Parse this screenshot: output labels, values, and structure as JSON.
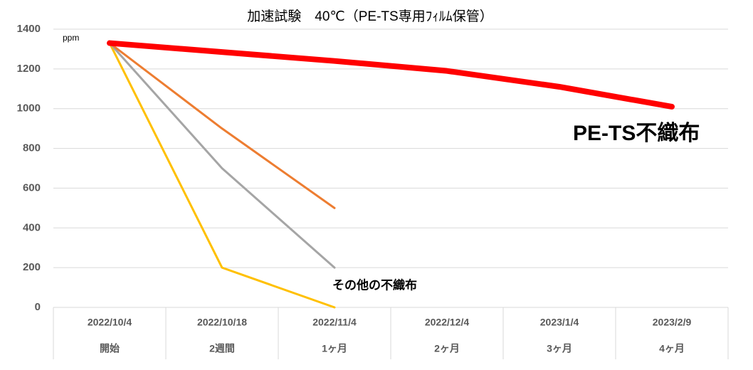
{
  "chart_data": {
    "type": "line",
    "title": "加速試験　40℃（PE-TS専用ﾌｨﾙﾑ保管）",
    "y_label": "ppm",
    "categories": [
      "2022/10/4",
      "2022/10/18",
      "2022/11/4",
      "2022/12/4",
      "2023/1/4",
      "2023/2/9"
    ],
    "category_periods": [
      "開始",
      "2週間",
      "1ヶ月",
      "2ヶ月",
      "3ヶ月",
      "4ヶ月"
    ],
    "series": [
      {
        "name": "PE-TS不織布",
        "color": "#ff0000",
        "width": 8,
        "values": [
          1330,
          1285,
          1240,
          1190,
          1110,
          1010
        ]
      },
      {
        "color": "#ed7d31",
        "width": 3,
        "values": [
          1330,
          900,
          500,
          null,
          null,
          null
        ]
      },
      {
        "color": "#a5a5a5",
        "width": 3,
        "values": [
          1330,
          700,
          200,
          null,
          null,
          null
        ]
      },
      {
        "color": "#ffc000",
        "width": 3,
        "values": [
          1330,
          200,
          0,
          null,
          null,
          null
        ]
      }
    ],
    "annotation": "その他の不織布",
    "ylim": [
      0,
      1400
    ],
    "yticks": [
      0,
      200,
      400,
      600,
      800,
      1000,
      1200,
      1400
    ],
    "grid": true
  }
}
